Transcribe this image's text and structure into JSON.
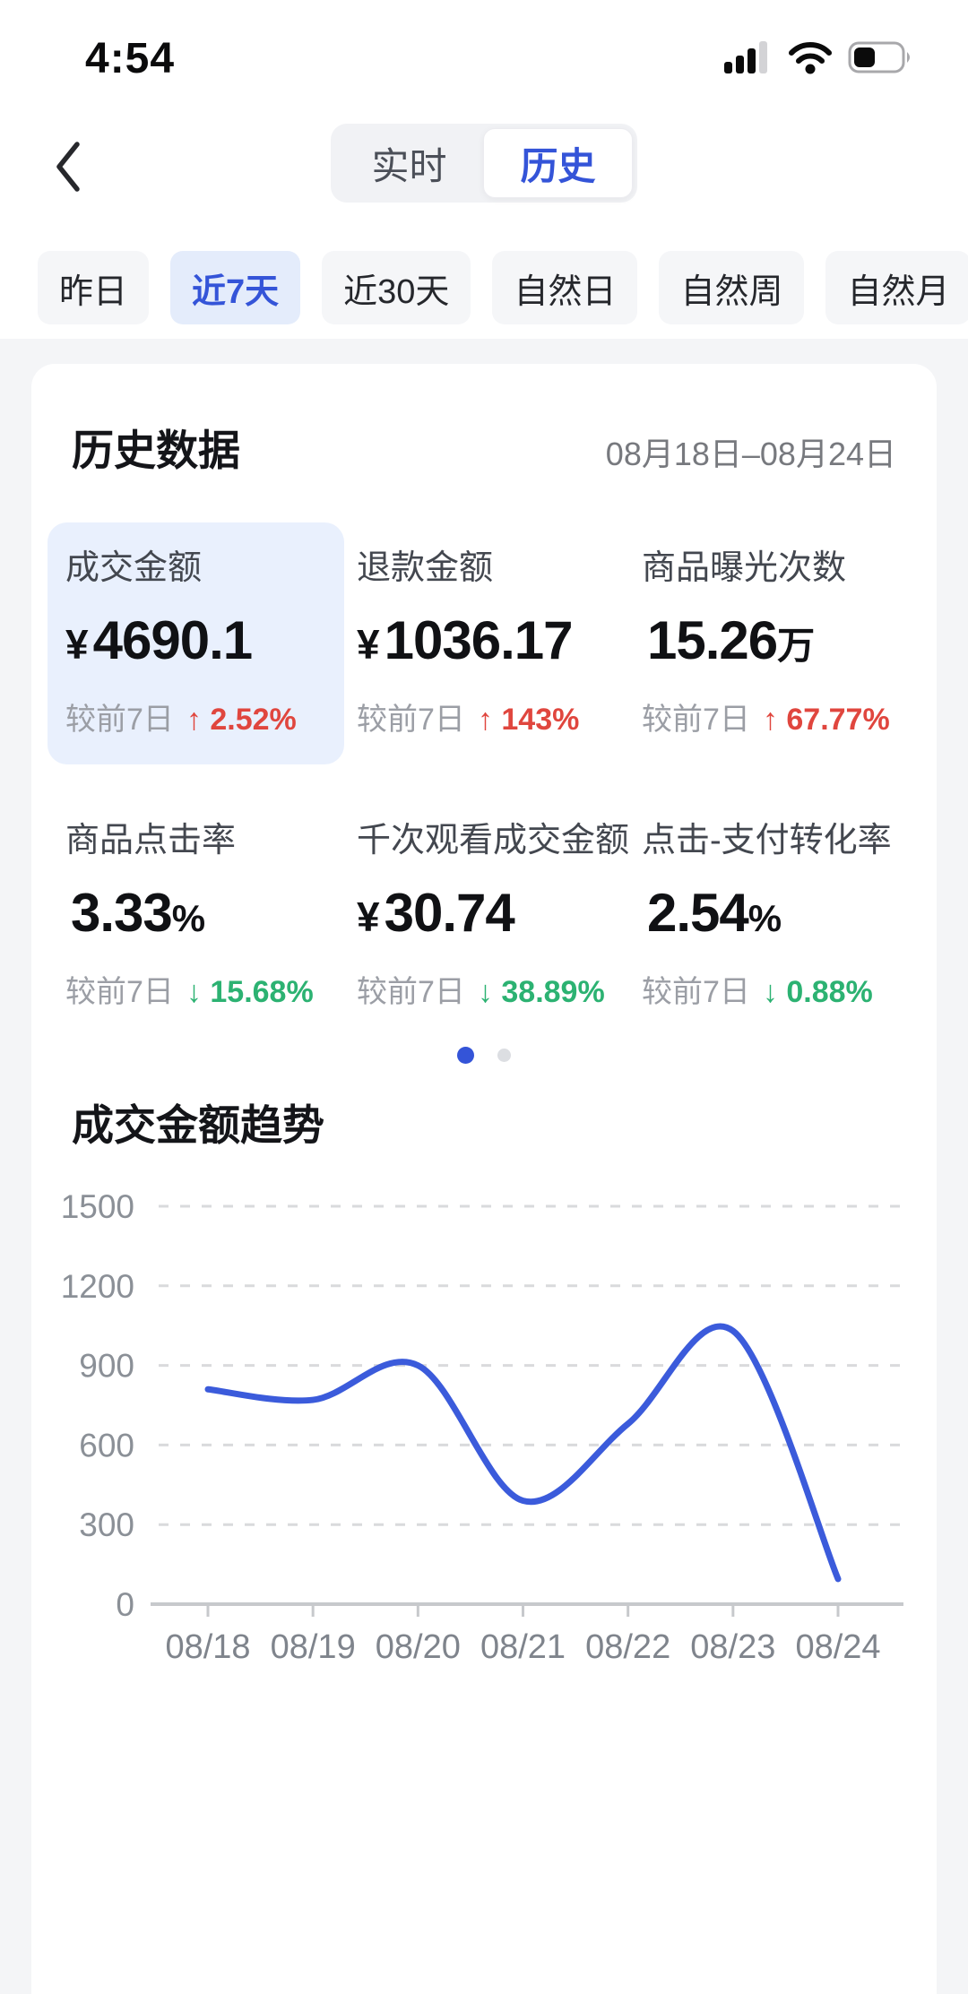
{
  "status_bar": {
    "time": "4:54",
    "battery_fill_ratio": 0.4
  },
  "nav": {
    "back_label": "back",
    "tabs": [
      {
        "label": "实时",
        "active": false
      },
      {
        "label": "历史",
        "active": true
      }
    ]
  },
  "filters": [
    {
      "label": "昨日",
      "active": false
    },
    {
      "label": "近7天",
      "active": true
    },
    {
      "label": "近30天",
      "active": false
    },
    {
      "label": "自然日",
      "active": false
    },
    {
      "label": "自然周",
      "active": false
    },
    {
      "label": "自然月",
      "active": false
    }
  ],
  "card": {
    "title": "历史数据",
    "date_range": "08月18日–08月24日",
    "metrics": [
      {
        "label": "成交金额",
        "prefix": "¥",
        "value": "4690.1",
        "suffix": "",
        "compare_label": "较前7日",
        "direction": "up",
        "arrow": "↑",
        "change": "2.52%",
        "highlighted": true
      },
      {
        "label": "退款金额",
        "prefix": "¥",
        "value": "1036.17",
        "suffix": "",
        "compare_label": "较前7日",
        "direction": "up",
        "arrow": "↑",
        "change": "143%",
        "highlighted": false
      },
      {
        "label": "商品曝光次数",
        "prefix": "",
        "value": "15.26",
        "suffix": "万",
        "compare_label": "较前7日",
        "direction": "up",
        "arrow": "↑",
        "change": "67.77%",
        "highlighted": false
      },
      {
        "label": "商品点击率",
        "prefix": "",
        "value": "3.33",
        "suffix": "%",
        "compare_label": "较前7日",
        "direction": "down",
        "arrow": "↓",
        "change": "15.68%",
        "highlighted": false
      },
      {
        "label": "千次观看成交金额",
        "prefix": "¥",
        "value": "30.74",
        "suffix": "",
        "compare_label": "较前7日",
        "direction": "down",
        "arrow": "↓",
        "change": "38.89%",
        "highlighted": false
      },
      {
        "label": "点击-支付转化率",
        "prefix": "",
        "value": "2.54",
        "suffix": "%",
        "compare_label": "较前7日",
        "direction": "down",
        "arrow": "↓",
        "change": "0.88%",
        "highlighted": false
      }
    ],
    "pagination": {
      "dots": 2,
      "active_index": 0
    }
  },
  "chart_section": {
    "title": "成交金额趋势"
  },
  "chart_data": {
    "type": "line",
    "title": "成交金额趋势",
    "x": [
      "08/18",
      "08/19",
      "08/20",
      "08/21",
      "08/22",
      "08/23",
      "08/24"
    ],
    "values": [
      810,
      770,
      900,
      390,
      680,
      1030,
      95
    ],
    "ylim": [
      0,
      1500
    ],
    "yticks": [
      0,
      300,
      600,
      900,
      1200,
      1500
    ],
    "xlabel": "",
    "ylabel": "",
    "grid": "horizontal-dashed",
    "legend": "none",
    "line_color": "#3b5bdb"
  },
  "colors": {
    "accent_blue": "#3454d8",
    "line_blue": "#3b5bdb",
    "up_red": "#e0463e",
    "down_green": "#2cb272",
    "highlight_tile_bg": "#e9f0fd",
    "chip_active_bg": "#e4ecfb",
    "page_bg": "#f4f5f7"
  }
}
